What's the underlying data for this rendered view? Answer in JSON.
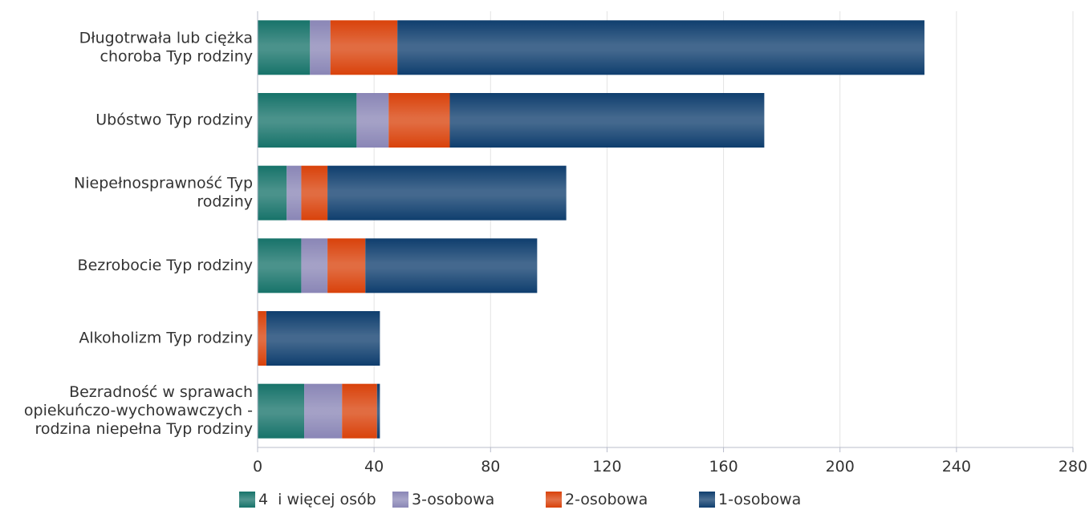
{
  "chart_data": {
    "type": "bar",
    "orientation": "horizontal",
    "stacked": true,
    "categories": [
      [
        "Długotrwała lub ciężka",
        "choroba Typ rodziny"
      ],
      [
        "Ubóstwo Typ rodziny"
      ],
      [
        "Niepełnosprawność Typ",
        "rodziny"
      ],
      [
        "Bezrobocie Typ rodziny"
      ],
      [
        "Alkoholizm Typ rodziny"
      ],
      [
        "Bezradność w sprawach",
        "opiekuńczo-wychowawczych -",
        "rodzina niepełna Typ rodziny"
      ]
    ],
    "series": [
      {
        "name": "4  i więcej osób",
        "color": "#17736a",
        "values": [
          18,
          34,
          10,
          15,
          0,
          16
        ]
      },
      {
        "name": "3-osobowa",
        "color": "#8a86b6",
        "values": [
          7,
          11,
          5,
          9,
          0,
          13
        ]
      },
      {
        "name": "2-osobowa",
        "color": "#d9420b",
        "values": [
          23,
          21,
          9,
          13,
          3,
          12
        ]
      },
      {
        "name": "1-osobowa",
        "color": "#0f3e6e",
        "values": [
          181,
          108,
          82,
          59,
          39,
          1
        ]
      }
    ],
    "xlim": [
      0,
      280
    ],
    "xticks": [
      "0",
      "40",
      "80",
      "120",
      "160",
      "200",
      "240",
      "280"
    ],
    "grid": true,
    "legend_position": "bottom"
  }
}
